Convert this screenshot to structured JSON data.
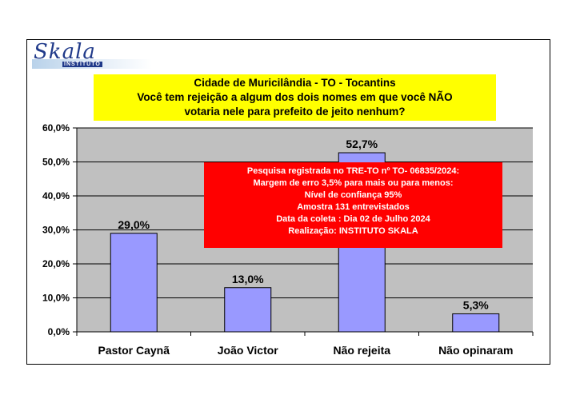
{
  "logo": {
    "name": "Skala",
    "sub": "INSTITUTO"
  },
  "title_lines": [
    "Cidade de Muricilândia - TO - Tocantins",
    "Você tem rejeição a algum dos dois nomes em que você NÃO",
    "votaria nele para prefeito de jeito nenhum?"
  ],
  "note_lines": [
    "Pesquisa registrada no TRE-TO nº TO- 06835/2024:",
    "Margem de erro 3,5% para mais ou para menos:",
    "Nível de confiança 95%",
    "Amostra 131 entrevistados",
    "Data da coleta : Dia 02 de Julho 2024",
    "Realização: INSTITUTO SKALA"
  ],
  "colors": {
    "plot_bg": "#c0c0c0",
    "bar": "#9999ff",
    "title_bg": "#ffff00",
    "note_bg": "#ff0000"
  },
  "chart_data": {
    "type": "bar",
    "categories": [
      "Pastor Caynã",
      "João Victor",
      "Não rejeita",
      "Não opinaram"
    ],
    "values": [
      29.0,
      13.0,
      52.7,
      5.3
    ],
    "value_labels": [
      "29,0%",
      "13,0%",
      "52,7%",
      "5,3%"
    ],
    "ylim": [
      0,
      60
    ],
    "yticks": [
      0,
      10,
      20,
      30,
      40,
      50,
      60
    ],
    "ytick_labels": [
      "0,0%",
      "10,0%",
      "20,0%",
      "30,0%",
      "40,0%",
      "50,0%",
      "60,0%"
    ],
    "grid": true,
    "title": "Cidade de Muricilândia - TO - Tocantins",
    "xlabel": "",
    "ylabel": ""
  }
}
